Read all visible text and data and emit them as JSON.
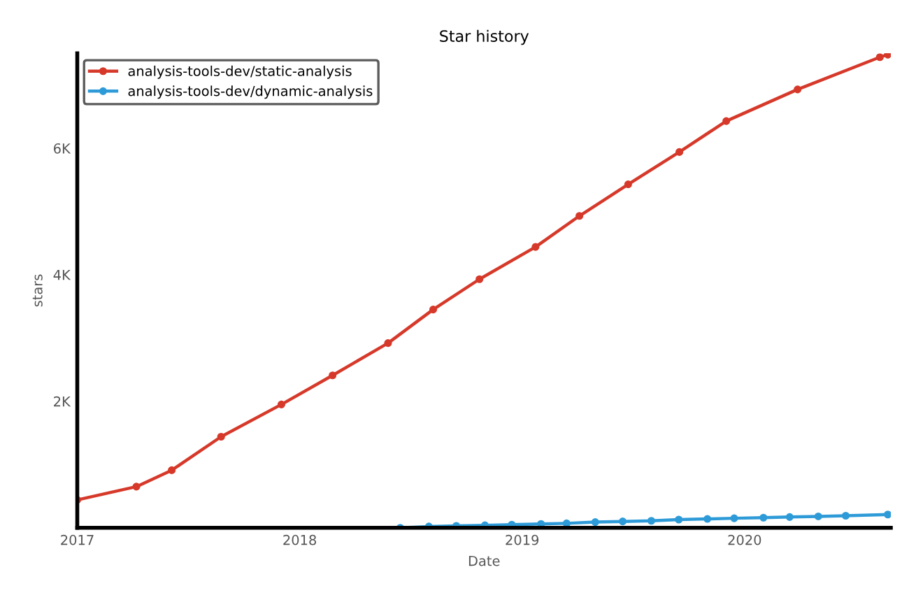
{
  "chart_data": {
    "type": "line",
    "title": "Star history",
    "xlabel": "Date",
    "ylabel": "stars",
    "series": [
      {
        "name": "analysis-tools-dev/static-analysis",
        "color": "#d6392a",
        "x": [
          "2017-01-01",
          "2017-04-08",
          "2017-06-05",
          "2017-08-25",
          "2017-12-02",
          "2018-02-24",
          "2018-05-26",
          "2018-08-08",
          "2018-10-23",
          "2019-01-23",
          "2019-04-05",
          "2019-06-24",
          "2019-09-16",
          "2019-12-02",
          "2020-03-28",
          "2020-08-10",
          "2020-08-23"
        ],
        "values": [
          440,
          650,
          910,
          1440,
          1950,
          2410,
          2920,
          3450,
          3930,
          4440,
          4930,
          5430,
          5940,
          6430,
          6930,
          7440,
          7480
        ]
      },
      {
        "name": "analysis-tools-dev/dynamic-analysis",
        "color": "#2e9bd8",
        "x": [
          "2018-06-15",
          "2018-08-01",
          "2018-09-15",
          "2018-11-01",
          "2018-12-15",
          "2019-02-01",
          "2019-03-15",
          "2019-05-01",
          "2019-06-15",
          "2019-08-01",
          "2019-09-15",
          "2019-11-01",
          "2019-12-15",
          "2020-02-01",
          "2020-03-15",
          "2020-05-01",
          "2020-06-15",
          "2020-08-23"
        ],
        "values": [
          0,
          20,
          30,
          40,
          50,
          60,
          70,
          90,
          100,
          110,
          130,
          140,
          150,
          160,
          170,
          180,
          190,
          210
        ]
      }
    ],
    "xlim": [
      "2017-01-01",
      "2020-08-28"
    ],
    "xticks": [
      {
        "value": "2017-01-01",
        "label": "2017"
      },
      {
        "value": "2018-01-01",
        "label": "2018"
      },
      {
        "value": "2019-01-01",
        "label": "2019"
      },
      {
        "value": "2020-01-01",
        "label": "2020"
      }
    ],
    "ylim": [
      0,
      7500
    ],
    "yticks": [
      {
        "value": 2000,
        "label": "2K"
      },
      {
        "value": 4000,
        "label": "4K"
      },
      {
        "value": 6000,
        "label": "6K"
      }
    ],
    "legend": "top left",
    "marker": "circle",
    "line_style": "solid",
    "grid": false
  }
}
